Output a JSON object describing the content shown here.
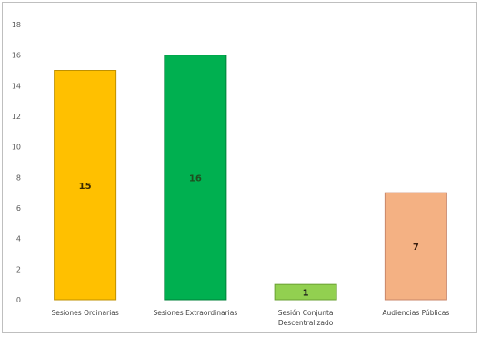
{
  "chart_data": {
    "type": "bar",
    "categories": [
      [
        "Sesiones Ordinarias"
      ],
      [
        "Sesiones Extraordinarias"
      ],
      [
        "Sesión Conjunta",
        "Descentralizado"
      ],
      [
        "Audiencias Públicas"
      ]
    ],
    "values": [
      15,
      16,
      1,
      7
    ],
    "data_labels": [
      "15",
      "16",
      "1",
      "7"
    ],
    "bar_colors": [
      "#ffc000",
      "#00b050",
      "#92d050",
      "#f4b183"
    ],
    "bar_border_colors": [
      "#bf9000",
      "#00803a",
      "#6aa033",
      "#c9866a"
    ],
    "label_colors": [
      "#3a2a00",
      "#1f4d1f",
      "#1a1a1a",
      "#3a1f10"
    ],
    "y_ticks": [
      "0",
      "2",
      "4",
      "6",
      "8",
      "10",
      "12",
      "14",
      "16",
      "18"
    ],
    "ylim": [
      0,
      18
    ],
    "grid": false,
    "legend": "none",
    "title": "",
    "xlabel": "",
    "ylabel": ""
  }
}
